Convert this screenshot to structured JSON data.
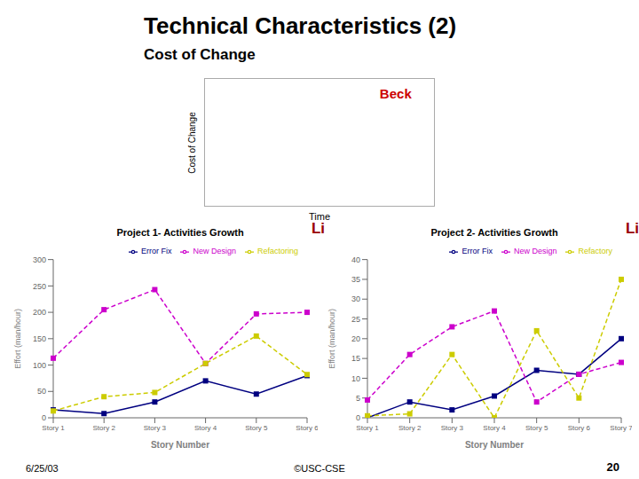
{
  "title": "Technical Characteristics (2)",
  "subtitle": "Cost of Change",
  "annotations": [
    "6/25/03",
    "©USC-CSE",
    "20"
  ],
  "chart_data": [
    {
      "type": "line",
      "xlabel": "Time",
      "ylabel": "Cost of Change",
      "tick_labels": false,
      "annotations": [
        {
          "text": "Beck",
          "color": "#cc0000"
        }
      ]
    },
    {
      "type": "line",
      "title": "Project 1- Activities Growth",
      "xlabel": "Story Number",
      "ylabel": "Effort (man/hour)",
      "categories": [
        "Story 1",
        "Story 2",
        "Story 3",
        "Story 4",
        "Story 5",
        "Story 6"
      ],
      "ylim": [
        0,
        300
      ],
      "yticks": [
        0,
        50,
        100,
        150,
        200,
        250,
        300
      ],
      "legend": "upper right",
      "annotations": [
        {
          "text": "Li",
          "color": "#990000"
        }
      ],
      "series": [
        {
          "name": "Error Fix",
          "color": "#000080",
          "marker": "square",
          "line_style": "solid",
          "values": [
            15,
            8,
            30,
            70,
            45,
            80
          ]
        },
        {
          "name": "New Design",
          "color": "#cc00cc",
          "marker": "square",
          "line_style": "dashed",
          "values": [
            113,
            205,
            243,
            103,
            197,
            200
          ]
        },
        {
          "name": "Refactoring",
          "color": "#cccc00",
          "marker": "square",
          "line_style": "dashed",
          "values": [
            13,
            40,
            48,
            103,
            155,
            82
          ]
        }
      ]
    },
    {
      "type": "line",
      "title": "Project 2- Activities Growth",
      "xlabel": "Story Number",
      "ylabel": "Effort (man/hour)",
      "categories": [
        "Story 1",
        "Story 2",
        "Story 3",
        "Story 4",
        "Story 5",
        "Story 6",
        "Story 7"
      ],
      "ylim": [
        0,
        40
      ],
      "yticks": [
        0,
        5,
        10,
        15,
        20,
        25,
        30,
        35,
        40
      ],
      "legend": "upper right",
      "annotations": [
        {
          "text": "Li",
          "color": "#990000"
        }
      ],
      "series": [
        {
          "name": "Error Fix",
          "color": "#000080",
          "marker": "square",
          "line_style": "solid",
          "values": [
            0,
            4,
            2,
            5.5,
            12,
            11,
            20
          ]
        },
        {
          "name": "New Design",
          "color": "#cc00cc",
          "marker": "square",
          "line_style": "dashed",
          "values": [
            4.5,
            16,
            23,
            27,
            4,
            11,
            14
          ]
        },
        {
          "name": "Refactory",
          "color": "#cccc00",
          "marker": "square",
          "line_style": "dashed",
          "values": [
            0.5,
            1,
            16,
            0,
            22,
            5,
            35
          ]
        }
      ]
    }
  ]
}
